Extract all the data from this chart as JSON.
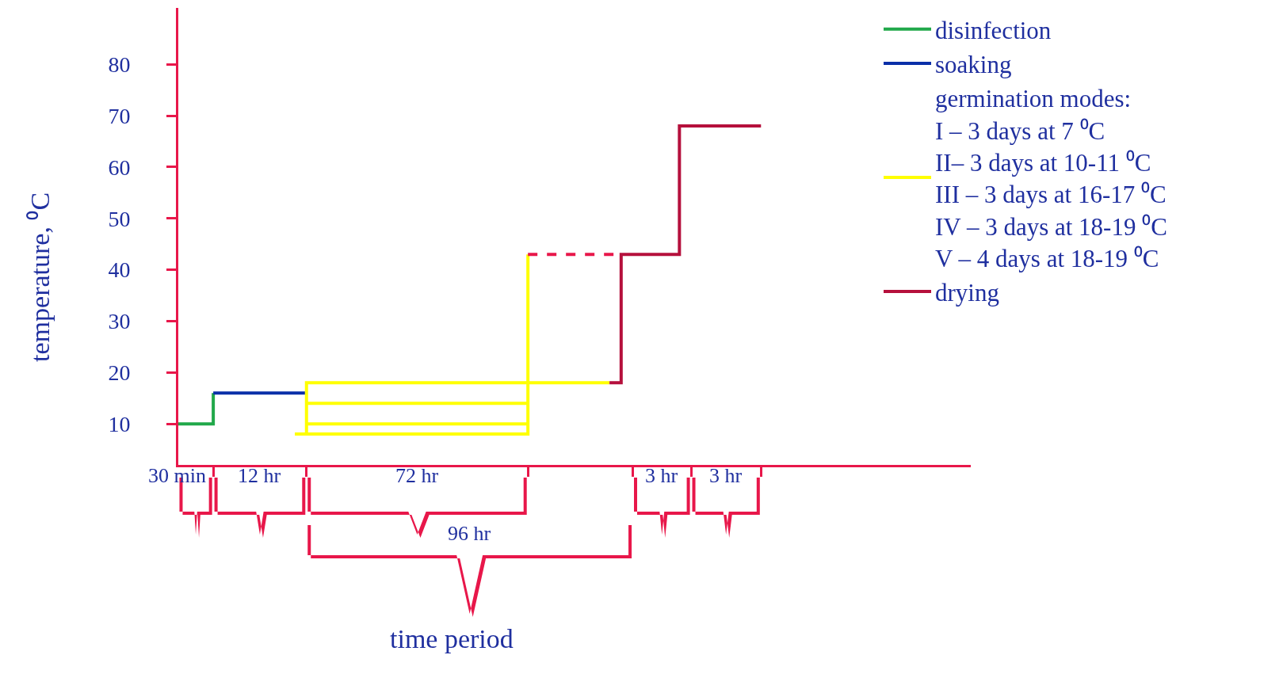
{
  "chart_data": {
    "type": "step",
    "ylabel": "temperature, ⁰C",
    "categories": [
      null,
      null,
      null,
      null,
      null,
      null,
      null,
      null,
      null,
      null,
      null,
      null,
      null,
      null,
      null,
      null,
      null,
      null,
      null,
      null,
      null,
      null,
      null,
      null,
      null,
      null,
      null,
      null,
      null,
      null,
      null,
      null,
      null,
      null,
      null,
      null,
      null,
      null,
      null,
      null,
      null,
      null,
      null,
      null,
      null,
      null,
      null,
      null,
      null,
      null,
      null,
      null,
      null,
      null,
      null,
      null,
      null,
      null,
      null,
      null,
      null,
      null,
      null,
      null,
      null,
      null,
      null,
      null,
      null
    ],
    "ylim": [
      2,
      91
    ],
    "yticks": [
      10,
      20,
      30,
      40,
      50,
      60,
      70,
      80
    ],
    "tick_labels": "y",
    "legend": "top right",
    "marker": "none",
    "series": [
      {
        "name": "disinfection",
        "color": "#21a84a",
        "values": [
          10,
          10,
          10,
          16,
          null,
          null,
          null,
          null,
          null,
          null,
          null,
          null,
          null,
          null,
          null,
          null,
          null,
          null,
          null,
          null,
          null,
          null,
          null,
          null,
          null,
          null,
          null,
          null,
          null,
          null,
          null,
          null,
          null,
          null,
          null,
          null,
          null,
          null,
          null,
          null,
          null,
          null,
          null,
          null,
          null,
          null,
          null,
          null,
          null,
          null,
          null,
          null,
          null,
          null,
          null,
          null,
          null,
          null,
          null,
          null,
          null,
          null,
          null,
          null,
          null,
          null,
          null,
          null,
          null
        ]
      },
      {
        "name": "soaking",
        "color": "#0a2fa8",
        "values": [
          null,
          null,
          null,
          16,
          16,
          16,
          16,
          16,
          16,
          16,
          16,
          16,
          null,
          null,
          null,
          null,
          null,
          null,
          null,
          null,
          null,
          null,
          null,
          null,
          null,
          null,
          null,
          null,
          null,
          null,
          null,
          null,
          null,
          null,
          null,
          null,
          null,
          null,
          null,
          null,
          null,
          null,
          null,
          null,
          null,
          null,
          null,
          null,
          null,
          null,
          null,
          null,
          null,
          null,
          null,
          null,
          null,
          null,
          null,
          null,
          null,
          null,
          null,
          null,
          null,
          null,
          null,
          null,
          null
        ]
      },
      {
        "name": "germination modes:\nI – 3 days at 7 ⁰C\nII– 3 days at 10-11 ⁰C\nIII – 3 days at 16-17 ⁰C\nIV – 3 days at 18-19 ⁰C\nV – 4 days at 18-19 ⁰C",
        "color": "#ffff00",
        "values": [
          null,
          null,
          null,
          null,
          null,
          null,
          null,
          null,
          null,
          null,
          8,
          18,
          18,
          18,
          18,
          18,
          18,
          18,
          18,
          18,
          18,
          18,
          18,
          18,
          18,
          18,
          18,
          18,
          18,
          18,
          18,
          18,
          18,
          18,
          18,
          18,
          18,
          18,
          null,
          null,
          null,
          null,
          null,
          null,
          null,
          null,
          null,
          null,
          null,
          null,
          null,
          null,
          null,
          null,
          null,
          null,
          null,
          null,
          null,
          null,
          null,
          null,
          null,
          null,
          null,
          null,
          null,
          null,
          null
        ]
      },
      {
        "color": "#ffff00",
        "values": [
          null,
          null,
          null,
          null,
          null,
          null,
          null,
          null,
          null,
          null,
          null,
          8,
          8,
          8,
          8,
          8,
          8,
          8,
          8,
          8,
          8,
          8,
          8,
          8,
          8,
          8,
          8,
          8,
          8,
          8,
          43,
          null,
          null,
          null,
          null,
          null,
          null,
          null,
          null,
          null,
          null,
          null,
          null,
          null,
          null,
          null,
          null,
          null,
          null,
          null,
          null,
          null,
          null,
          null,
          null,
          null,
          null,
          null,
          null,
          null,
          null,
          null,
          null,
          null,
          null,
          null,
          null,
          null,
          null
        ]
      },
      {
        "color": "#ffff00",
        "values": [
          null,
          null,
          null,
          null,
          null,
          null,
          null,
          null,
          null,
          null,
          null,
          10,
          10,
          10,
          10,
          10,
          10,
          10,
          10,
          10,
          10,
          10,
          10,
          10,
          10,
          10,
          10,
          10,
          10,
          10,
          10,
          null,
          null,
          null,
          null,
          null,
          null,
          null,
          null,
          null,
          null,
          null,
          null,
          null,
          null,
          null,
          null,
          null,
          null,
          null,
          null,
          null,
          null,
          null,
          null,
          null,
          null,
          null,
          null,
          null,
          null,
          null,
          null,
          null,
          null,
          null,
          null,
          null,
          null
        ]
      },
      {
        "color": "#ffff00",
        "values": [
          null,
          null,
          null,
          null,
          null,
          null,
          null,
          null,
          null,
          null,
          null,
          14,
          14,
          14,
          14,
          14,
          14,
          14,
          14,
          14,
          14,
          14,
          14,
          14,
          14,
          14,
          14,
          14,
          14,
          14,
          14,
          null,
          null,
          null,
          null,
          null,
          null,
          null,
          null,
          null,
          null,
          null,
          null,
          null,
          null,
          null,
          null,
          null,
          null,
          null,
          null,
          null,
          null,
          null,
          null,
          null,
          null,
          null,
          null,
          null,
          null,
          null,
          null,
          null,
          null,
          null,
          null,
          null,
          null
        ]
      },
      {
        "color": "#e8174a",
        "line_style": "dashed",
        "values": [
          null,
          null,
          null,
          null,
          null,
          null,
          null,
          null,
          null,
          null,
          null,
          null,
          null,
          null,
          null,
          null,
          null,
          null,
          null,
          null,
          null,
          null,
          null,
          null,
          null,
          null,
          null,
          null,
          null,
          null,
          43,
          43,
          43,
          43,
          43,
          43,
          43,
          43,
          43,
          null,
          null,
          null,
          null,
          null,
          null,
          null,
          null,
          null,
          null,
          null,
          null,
          null,
          null,
          null,
          null,
          null,
          null,
          null,
          null,
          null,
          null,
          null,
          null,
          null,
          null,
          null,
          null,
          null,
          null
        ]
      },
      {
        "name": "drying",
        "color": "#b5103c",
        "values": [
          null,
          null,
          null,
          null,
          null,
          null,
          null,
          null,
          null,
          null,
          null,
          null,
          null,
          null,
          null,
          null,
          null,
          null,
          null,
          null,
          null,
          null,
          null,
          null,
          null,
          null,
          null,
          null,
          null,
          null,
          null,
          null,
          null,
          null,
          null,
          null,
          null,
          18,
          43,
          43,
          43,
          43,
          43,
          68,
          68,
          68,
          68,
          68,
          68,
          68,
          68,
          null,
          null,
          null,
          null,
          null,
          null,
          null,
          null,
          null,
          null,
          null,
          null,
          null,
          null,
          null,
          null,
          null,
          null
        ]
      }
    ],
    "annotations": [
      "30 min",
      "12 hr",
      "72 hr",
      "96 hr",
      "3 hr",
      "3 hr",
      "time period"
    ]
  }
}
